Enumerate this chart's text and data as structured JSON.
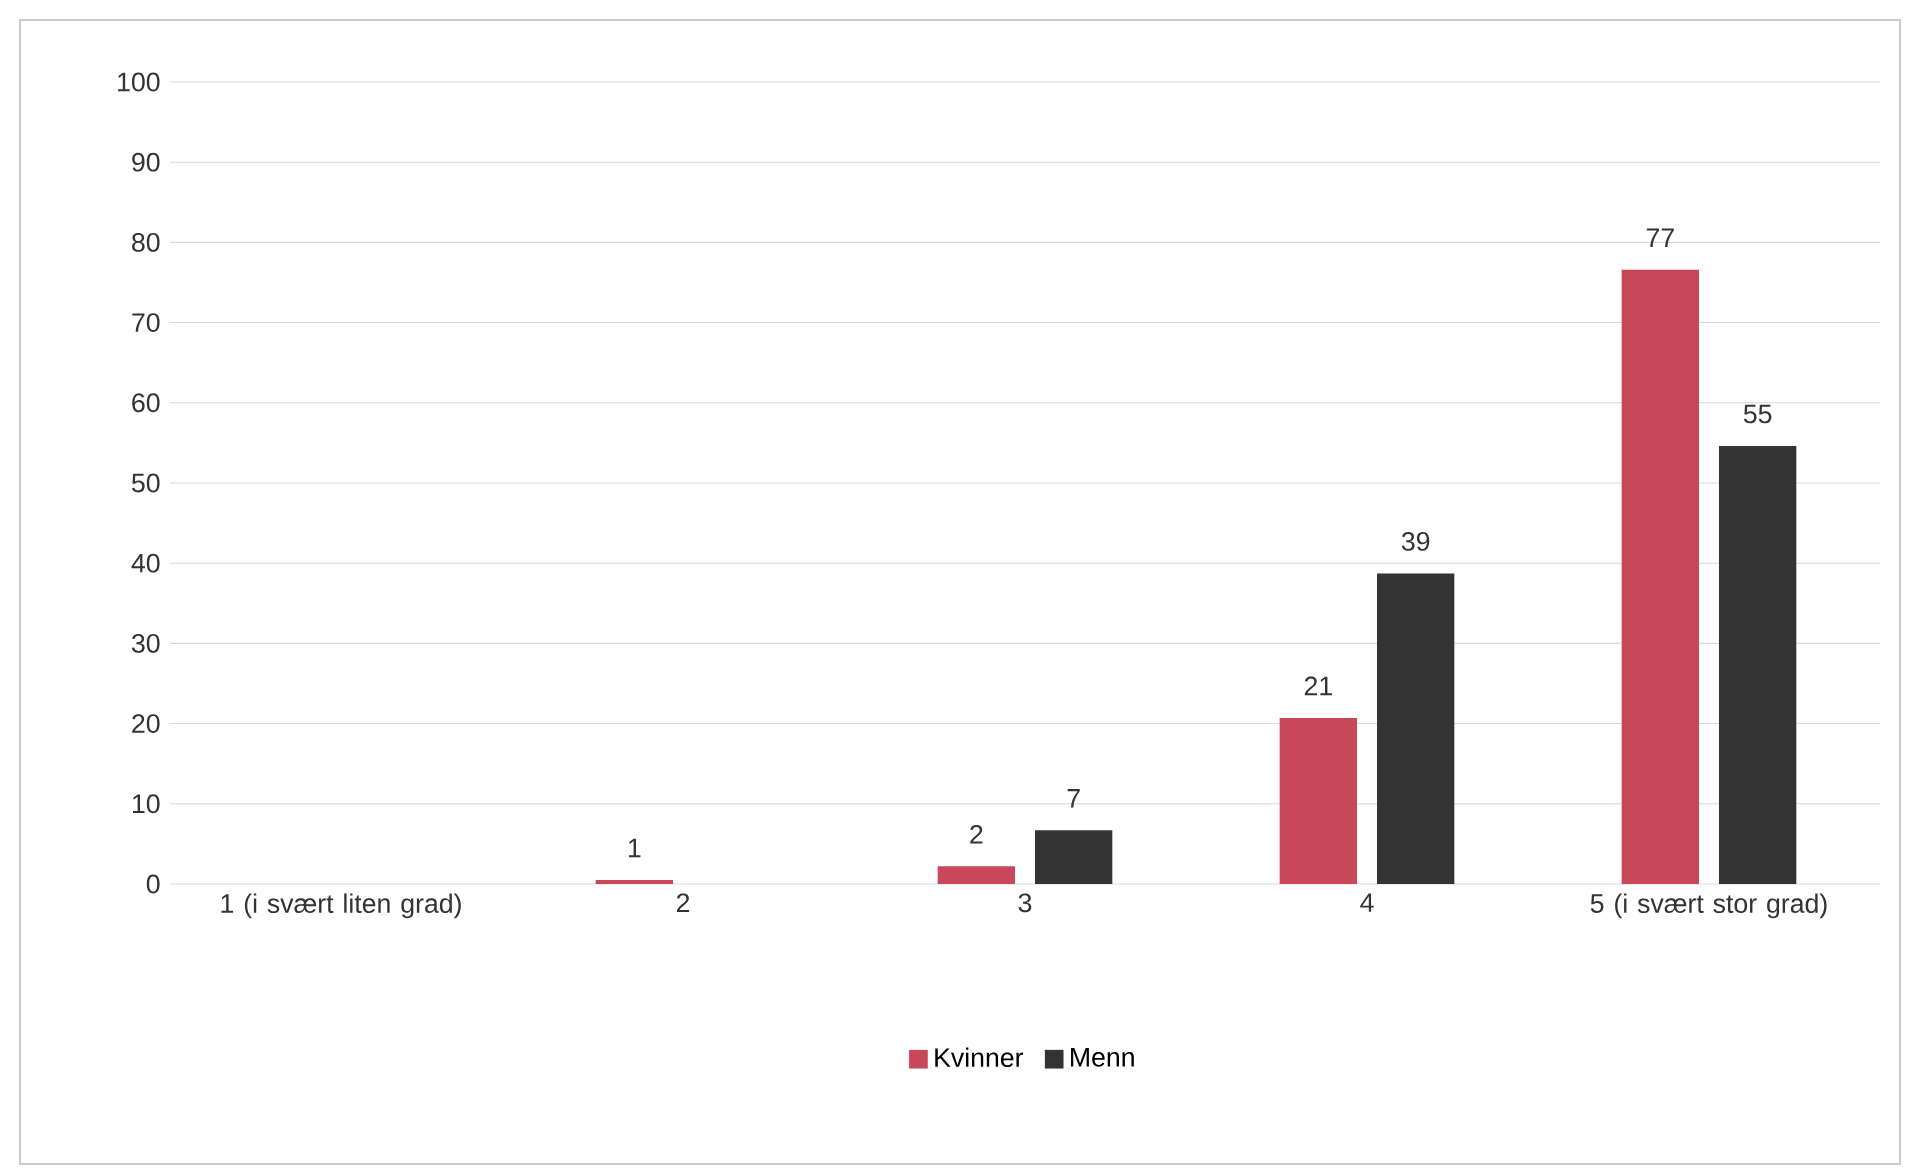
{
  "chart_data": {
    "type": "bar",
    "categories": [
      "1 (i svært liten grad)",
      "2",
      "3",
      "4",
      "5 (i svært stor grad)"
    ],
    "series": [
      {
        "name": "Kvinner",
        "color": "#c8485a",
        "values": [
          0,
          0.5,
          2.2,
          20.7,
          76.6
        ],
        "value_labels": [
          null,
          "1",
          "2",
          "21",
          "77"
        ]
      },
      {
        "name": "Menn",
        "color": "#333333",
        "values": [
          0,
          0,
          6.7,
          38.7,
          54.6
        ],
        "value_labels": [
          null,
          null,
          "7",
          "39",
          "55"
        ]
      }
    ],
    "ylim": [
      0,
      100
    ],
    "yticks": [
      0,
      10,
      20,
      30,
      40,
      50,
      60,
      70,
      80,
      90,
      100
    ],
    "grid": "y",
    "legend": "bottom"
  }
}
